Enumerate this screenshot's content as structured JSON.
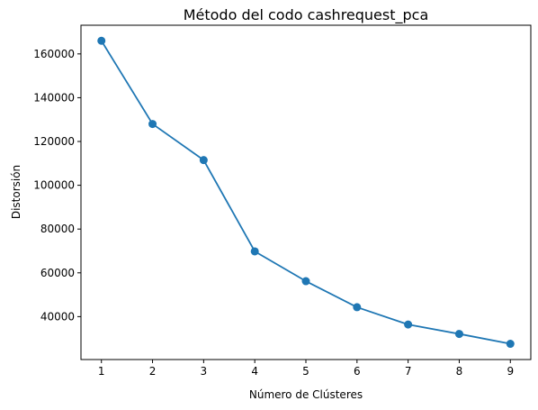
{
  "chart_data": {
    "type": "line",
    "title": "Método del codo cashrequest_pca",
    "xlabel": "Número de Clústeres",
    "ylabel": "Distorsión",
    "x": [
      1,
      2,
      3,
      4,
      5,
      6,
      7,
      8,
      9
    ],
    "series": [
      {
        "values": [
          166000,
          128000,
          111500,
          69800,
          56200,
          44300,
          36400,
          32100,
          27600
        ],
        "color": "#1f77b4",
        "marker": "circle"
      }
    ],
    "xticks": [
      "1",
      "2",
      "3",
      "4",
      "5",
      "6",
      "7",
      "8",
      "9"
    ],
    "yticks": [
      "40000",
      "60000",
      "80000",
      "100000",
      "120000",
      "140000",
      "160000"
    ],
    "ytick_values": [
      40000,
      60000,
      80000,
      100000,
      120000,
      140000,
      160000
    ],
    "xlim": [
      0.6,
      9.4
    ],
    "ylim": [
      20400,
      173100
    ],
    "grid": false,
    "legend": "none"
  }
}
